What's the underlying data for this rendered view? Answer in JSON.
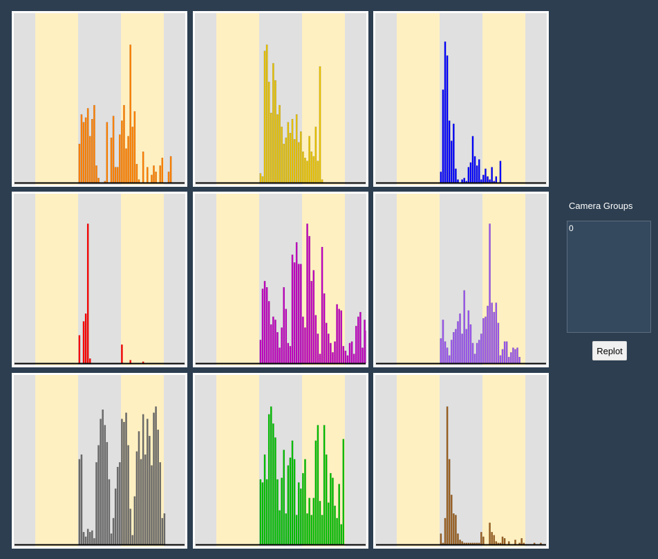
{
  "sidebar": {
    "title": "Camera Groups",
    "groups": [
      "0"
    ],
    "replot_label": "Replot"
  },
  "charts": {
    "band_colors": [
      "#e0e0e0",
      "#fff0c2",
      "#e0e0e0",
      "#fff0c2",
      "#e0e0e0"
    ],
    "band_edges": [
      0,
      0.125,
      0.375,
      0.625,
      0.875,
      1
    ],
    "panels": [
      {
        "chart_data": {
          "type": "bar",
          "color": "#ff8000",
          "x_start": 0.378,
          "x_step": 0.0124,
          "values": [
            0.25,
            0.44,
            0.39,
            0.42,
            0.48,
            0.3,
            0.41,
            0.5,
            0.11,
            0.03,
            0,
            0,
            0.01,
            0.39,
            0,
            0.29,
            0.43,
            0.1,
            0.1,
            0.31,
            0.4,
            0.5,
            0.22,
            0.3,
            0.89,
            0.36,
            0.46,
            0.12,
            0.02,
            0,
            0.2,
            0,
            0.1,
            0,
            0.05,
            0.11,
            0.07,
            0,
            0.11,
            0.16,
            0,
            0,
            0.07,
            0.17
          ]
        }
      },
      {
        "chart_data": {
          "type": "bar",
          "color": "#e6c100",
          "x_start": 0.378,
          "x_step": 0.0124,
          "values": [
            0.06,
            0.04,
            0.85,
            0.89,
            0.65,
            0.45,
            0.77,
            0.66,
            0.44,
            0.5,
            0.36,
            0.25,
            0.29,
            0.39,
            0.32,
            0.41,
            0.28,
            0.44,
            0.26,
            0.33,
            0.2,
            0.16,
            0.14,
            0.3,
            0.2,
            0.17,
            0.36,
            0.14,
            0.75,
            0.02
          ]
        }
      },
      {
        "chart_data": {
          "type": "bar",
          "color": "#0000ff",
          "x_start": 0.378,
          "x_step": 0.0124,
          "values": [
            0.07,
            0.6,
            0.91,
            0.82,
            0.4,
            0.27,
            0.38,
            0.09,
            0.02,
            0,
            0.02,
            0.03,
            0.01,
            0.1,
            0.13,
            0.3,
            0.17,
            0.11,
            0.15,
            0.02,
            0.05,
            0.09,
            0.04,
            0.02,
            0.1,
            0.01,
            0.04,
            0,
            0.14
          ]
        }
      },
      {
        "chart_data": {
          "type": "bar",
          "color": "#ff0000",
          "x_start": 0.378,
          "x_step": 0.0124,
          "values": [
            0.18,
            0,
            0.27,
            0.32,
            0.9,
            0.03,
            0,
            0,
            0,
            0,
            0,
            0,
            0,
            0,
            0,
            0,
            0,
            0,
            0,
            0,
            0.12,
            0,
            0,
            0,
            0.02,
            0,
            0,
            0,
            0,
            0,
            0.01
          ]
        }
      },
      {
        "chart_data": {
          "type": "bar",
          "color": "#c000c0",
          "x_start": 0.378,
          "x_step": 0.0124,
          "values": [
            0.15,
            0.48,
            0.53,
            0.49,
            0.4,
            0.25,
            0.3,
            0.28,
            0.2,
            0.1,
            0.23,
            0.49,
            0.35,
            0.13,
            0.11,
            0.7,
            0.65,
            0.78,
            0.64,
            0.64,
            0.3,
            0.23,
            0.9,
            0.82,
            0.53,
            0.6,
            0.31,
            0.19,
            0.06,
            0.75,
            0.45,
            0.26,
            0.19,
            0.13,
            0.07,
            0.14,
            0.38,
            0.35,
            0.34,
            0.11,
            0.08,
            0.05,
            0.13,
            0.14,
            0.06,
            0.24,
            0.3,
            0.33,
            0.1,
            0.28,
            0.21,
            0.06,
            0.08,
            0.16,
            0.1,
            0.06,
            0.13,
            0.41,
            0.3,
            0.07,
            0.07,
            0.05,
            0.3,
            0.19,
            0.06,
            0.16,
            0.18,
            0.06,
            0.3,
            0.13,
            0.07,
            0.06,
            0.06,
            0.19,
            0.13,
            0.1,
            0.28,
            0.09,
            0.05,
            0.06,
            0.05,
            0.1,
            0.05,
            0.28
          ]
        }
      },
      {
        "chart_data": {
          "type": "bar",
          "color": "#9955ee",
          "x_start": 0.378,
          "x_step": 0.0124,
          "values": [
            0.16,
            0.28,
            0.14,
            0.1,
            0.05,
            0.15,
            0.2,
            0.22,
            0.27,
            0.32,
            0.19,
            0.47,
            0.22,
            0.34,
            0.25,
            0.13,
            0.06,
            0.13,
            0.15,
            0.19,
            0.29,
            0.3,
            0.37,
            0.9,
            0.39,
            0.33,
            0.39,
            0.26,
            0.05,
            0.09,
            0.14,
            0.14,
            0.04,
            0.07,
            0.1,
            0.09,
            0.1,
            0.04
          ]
        }
      },
      {
        "chart_data": {
          "type": "bar",
          "color": "#6b6b6b",
          "x_start": 0.378,
          "x_step": 0.0124,
          "values": [
            0.55,
            0.58,
            0.08,
            0.05,
            0.1,
            0.08,
            0.09,
            0.04,
            0.53,
            0.64,
            0.81,
            0.87,
            0.77,
            0.66,
            0.42,
            0.07,
            0.17,
            0.36,
            0.5,
            0.53,
            0.81,
            0.79,
            0.85,
            0.64,
            0.23,
            0.06,
            0.31,
            0.6,
            0.73,
            0.55,
            0.84,
            0.58,
            0.81,
            0.7,
            0.51,
            0.85,
            0.89,
            0.74,
            0.53,
            0.17,
            0.2
          ]
        }
      },
      {
        "chart_data": {
          "type": "bar",
          "color": "#00c000",
          "x_start": 0.378,
          "x_step": 0.0124,
          "values": [
            0.42,
            0.4,
            0.58,
            0.42,
            0.84,
            0.89,
            0.78,
            0.69,
            0.42,
            0.22,
            0.43,
            0.61,
            0.2,
            0.51,
            0.56,
            0.67,
            0.55,
            0.19,
            0.4,
            0.36,
            0.46,
            0.55,
            0.2,
            0.3,
            0.19,
            0.3,
            0.67,
            0.77,
            0.28,
            0.19,
            0.77,
            0.58,
            0.27,
            0.46,
            0.43,
            0.25,
            0.17,
            0.39,
            0.13,
            0.68
          ]
        }
      },
      {
        "chart_data": {
          "type": "bar",
          "color": "#9a5f1f",
          "x_start": 0.378,
          "x_step": 0.0124,
          "values": [
            0.07,
            0.01,
            0.17,
            0.89,
            0.55,
            0.32,
            0.2,
            0.19,
            0.07,
            0.03,
            0.02,
            0.01,
            0.01,
            0.01,
            0.01,
            0.01,
            0.01,
            0.01,
            0.01,
            0.08,
            0.05,
            0,
            0,
            0.14,
            0.08,
            0.06,
            0.02,
            0.01,
            0.01,
            0.05,
            0.04,
            0,
            0.02,
            0,
            0,
            0.03,
            0,
            0.01,
            0.04,
            0.01,
            0,
            0,
            0,
            0,
            0.01,
            0,
            0,
            0.01
          ]
        }
      }
    ]
  }
}
